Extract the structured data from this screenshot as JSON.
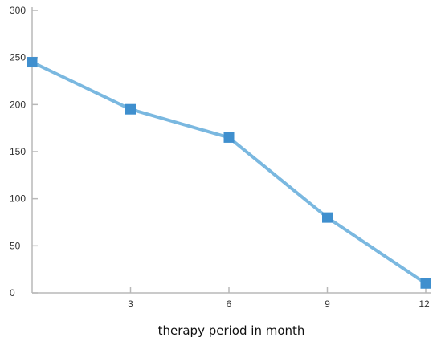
{
  "chart_data": {
    "type": "line",
    "title": "",
    "xlabel": "therapy period in month",
    "ylabel": "",
    "x": [
      0,
      3,
      6,
      9,
      12
    ],
    "xticks": [
      "",
      "3",
      "6",
      "9",
      "12"
    ],
    "yticks": [
      "0",
      "50",
      "100",
      "150",
      "200",
      "250",
      "300"
    ],
    "ylim": [
      0,
      300
    ],
    "xlim": [
      0,
      12
    ],
    "grid": false,
    "legend": "none",
    "series": [
      {
        "values": [
          245,
          195,
          165,
          80,
          10
        ]
      }
    ]
  },
  "colors": {
    "line": "#7ab8e0",
    "marker": "#3f8fce",
    "axis": "#b8b8b8"
  }
}
